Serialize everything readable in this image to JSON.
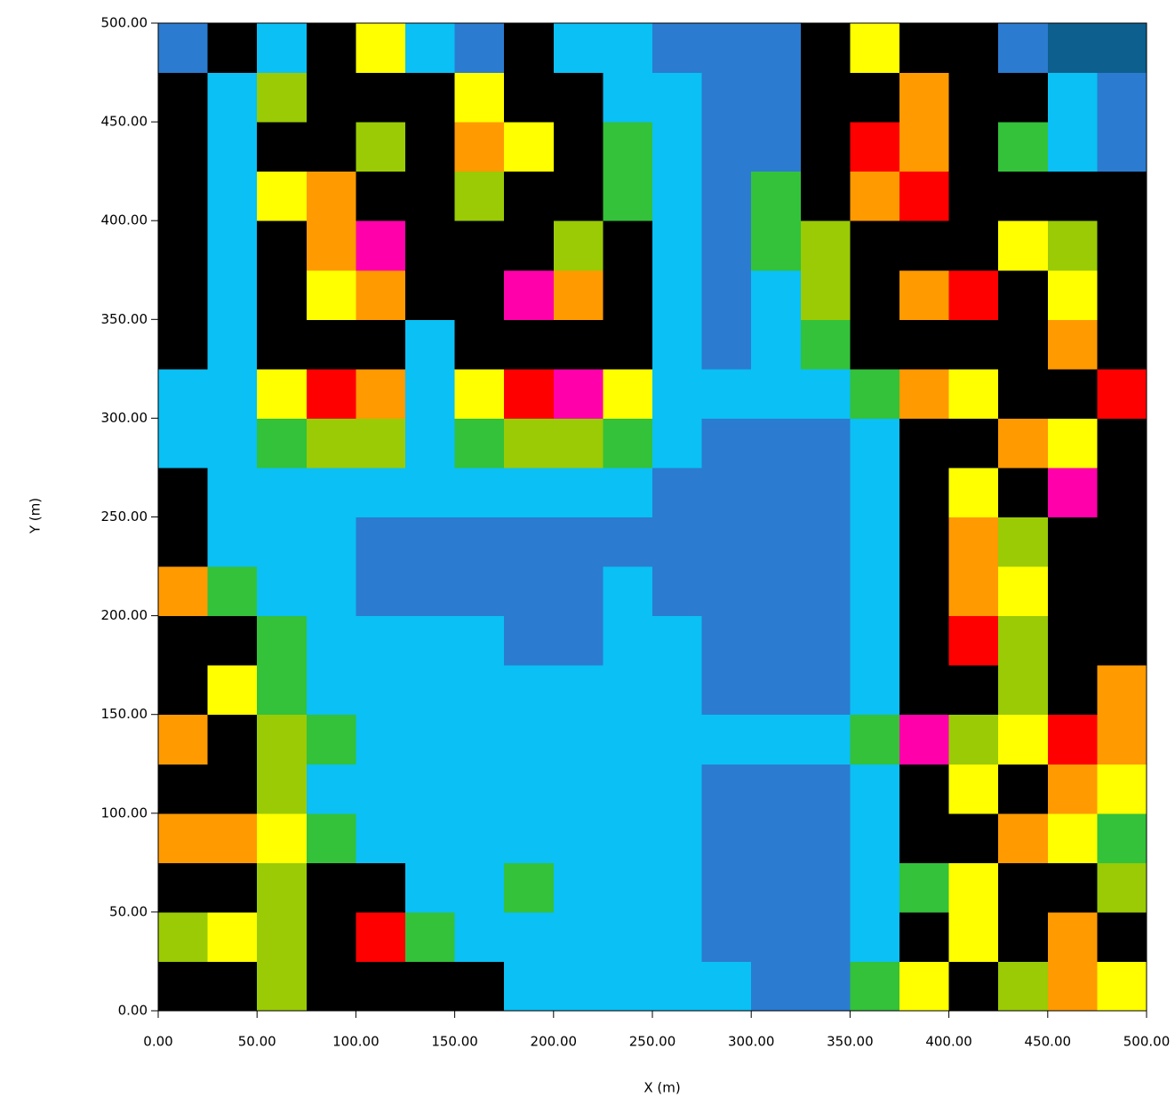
{
  "chart_data": {
    "type": "heatmap",
    "xlabel": "X (m)",
    "ylabel": "Y (m)",
    "xlim": [
      0,
      500
    ],
    "ylim": [
      0,
      500
    ],
    "xticks": [
      {
        "value": 0,
        "label": "0.00"
      },
      {
        "value": 50,
        "label": "50.00"
      },
      {
        "value": 100,
        "label": "100.00"
      },
      {
        "value": 150,
        "label": "150.00"
      },
      {
        "value": 200,
        "label": "200.00"
      },
      {
        "value": 250,
        "label": "250.00"
      },
      {
        "value": 300,
        "label": "300.00"
      },
      {
        "value": 350,
        "label": "350.00"
      },
      {
        "value": 400,
        "label": "400.00"
      },
      {
        "value": 450,
        "label": "450.00"
      },
      {
        "value": 500,
        "label": "500.00"
      }
    ],
    "yticks": [
      {
        "value": 0,
        "label": "0.00"
      },
      {
        "value": 50,
        "label": "50.00"
      },
      {
        "value": 100,
        "label": "100.00"
      },
      {
        "value": 150,
        "label": "150.00"
      },
      {
        "value": 200,
        "label": "200.00"
      },
      {
        "value": 250,
        "label": "250.00"
      },
      {
        "value": 300,
        "label": "300.00"
      },
      {
        "value": 350,
        "label": "350.00"
      },
      {
        "value": 400,
        "label": "400.00"
      },
      {
        "value": 450,
        "label": "450.00"
      },
      {
        "value": 500,
        "label": "500.00"
      }
    ],
    "colors": [
      "#000000",
      "#0d5f8e",
      "#2b7bd0",
      "#0ac0f5",
      "#33c23a",
      "#9acb04",
      "#ffff00",
      "#ff9a00",
      "#ff0000",
      "#ff00aa"
    ],
    "z": [
      [
        0,
        0,
        5,
        0,
        0,
        0,
        0,
        3,
        3,
        3,
        3,
        3,
        2,
        2,
        4,
        6,
        0,
        5,
        7,
        6
      ],
      [
        5,
        6,
        5,
        0,
        8,
        4,
        3,
        3,
        3,
        3,
        3,
        2,
        2,
        2,
        3,
        0,
        6,
        0,
        7,
        0
      ],
      [
        0,
        0,
        5,
        0,
        0,
        3,
        3,
        4,
        3,
        3,
        3,
        2,
        2,
        2,
        3,
        4,
        6,
        0,
        0,
        5
      ],
      [
        7,
        7,
        6,
        4,
        3,
        3,
        3,
        3,
        3,
        3,
        3,
        2,
        2,
        2,
        3,
        0,
        0,
        7,
        6,
        4
      ],
      [
        0,
        0,
        5,
        3,
        3,
        3,
        3,
        3,
        3,
        3,
        3,
        2,
        2,
        2,
        3,
        0,
        6,
        0,
        7,
        6
      ],
      [
        7,
        0,
        5,
        4,
        3,
        3,
        3,
        3,
        3,
        3,
        3,
        3,
        3,
        3,
        4,
        9,
        5,
        6,
        8,
        7
      ],
      [
        0,
        6,
        4,
        3,
        3,
        3,
        3,
        3,
        3,
        3,
        3,
        2,
        2,
        2,
        3,
        0,
        0,
        5,
        0,
        7
      ],
      [
        0,
        0,
        4,
        3,
        3,
        3,
        3,
        2,
        2,
        3,
        3,
        2,
        2,
        2,
        3,
        0,
        8,
        5,
        0,
        0
      ],
      [
        7,
        4,
        3,
        3,
        2,
        2,
        2,
        2,
        2,
        3,
        2,
        2,
        2,
        2,
        3,
        0,
        7,
        6,
        0,
        0
      ],
      [
        0,
        3,
        3,
        3,
        2,
        2,
        2,
        2,
        2,
        2,
        2,
        2,
        2,
        2,
        3,
        0,
        7,
        5,
        0,
        0
      ],
      [
        0,
        3,
        3,
        3,
        3,
        3,
        3,
        3,
        3,
        3,
        2,
        2,
        2,
        2,
        3,
        0,
        6,
        0,
        9,
        0
      ],
      [
        3,
        3,
        4,
        5,
        5,
        3,
        4,
        5,
        5,
        4,
        3,
        2,
        2,
        2,
        3,
        0,
        0,
        7,
        6,
        0
      ],
      [
        3,
        3,
        6,
        8,
        7,
        3,
        6,
        8,
        9,
        6,
        3,
        3,
        3,
        3,
        4,
        7,
        6,
        0,
        0,
        8
      ],
      [
        0,
        3,
        0,
        0,
        0,
        3,
        0,
        0,
        0,
        0,
        3,
        2,
        3,
        4,
        0,
        0,
        0,
        0,
        7,
        0
      ],
      [
        0,
        3,
        0,
        6,
        7,
        0,
        0,
        9,
        7,
        0,
        3,
        2,
        3,
        5,
        0,
        7,
        8,
        0,
        6,
        0
      ],
      [
        0,
        3,
        0,
        7,
        9,
        0,
        0,
        0,
        5,
        0,
        3,
        2,
        4,
        5,
        0,
        0,
        0,
        6,
        5,
        0
      ],
      [
        0,
        3,
        6,
        7,
        0,
        0,
        5,
        0,
        0,
        4,
        3,
        2,
        4,
        0,
        7,
        8,
        0,
        0,
        0,
        0
      ],
      [
        0,
        3,
        0,
        0,
        5,
        0,
        7,
        6,
        0,
        4,
        3,
        2,
        2,
        0,
        8,
        7,
        0,
        4,
        3,
        2
      ],
      [
        0,
        3,
        5,
        0,
        0,
        0,
        6,
        0,
        0,
        3,
        3,
        2,
        2,
        0,
        0,
        7,
        0,
        0,
        3,
        2
      ],
      [
        2,
        0,
        3,
        0,
        6,
        3,
        2,
        0,
        3,
        3,
        2,
        2,
        2,
        0,
        6,
        0,
        0,
        2,
        1,
        1
      ]
    ]
  }
}
